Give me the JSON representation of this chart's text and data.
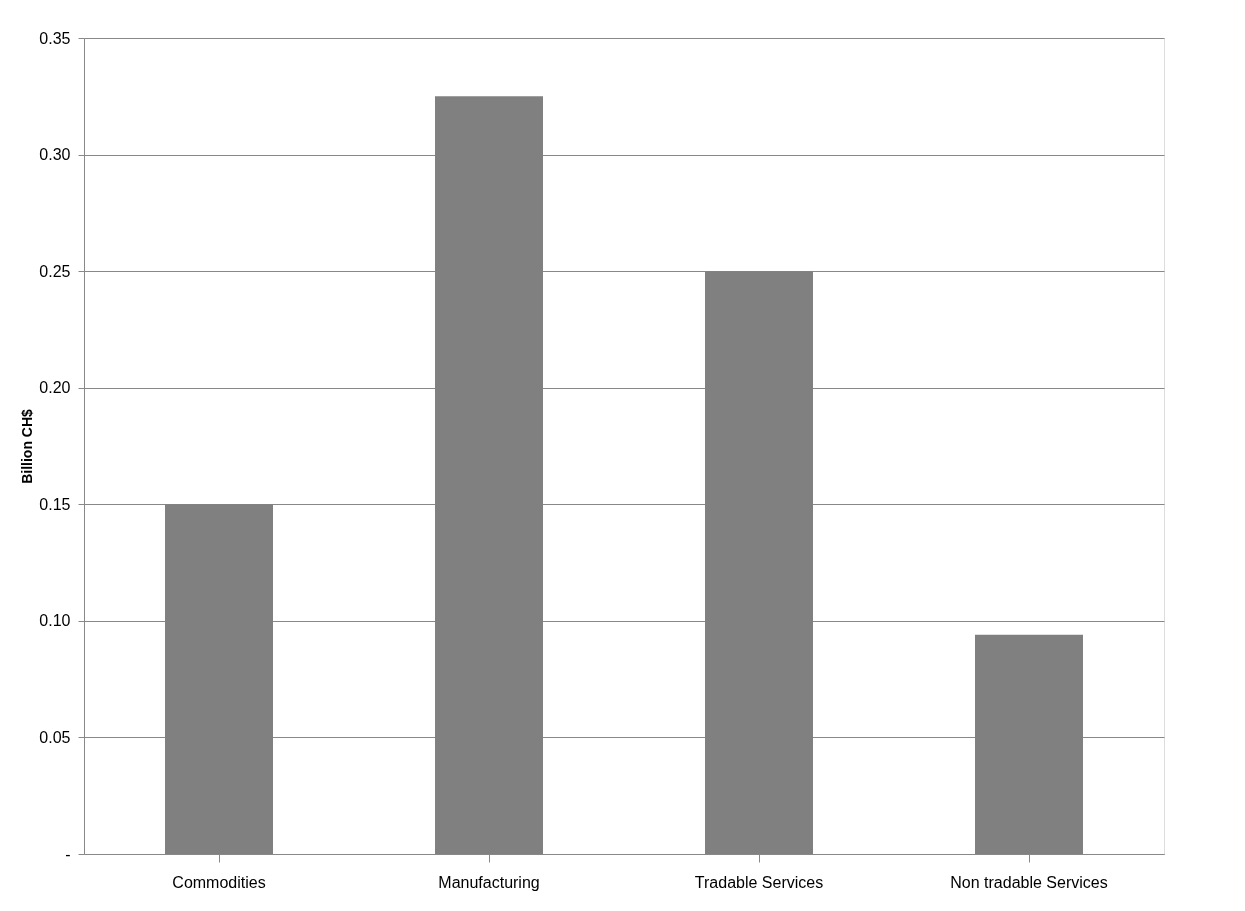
{
  "chart_data": {
    "type": "bar",
    "ylabel": "Billion CH$",
    "categories": [
      "Commodities",
      "Manufacturing",
      "Tradable Services",
      "Non tradable Services"
    ],
    "values": [
      0.15,
      0.325,
      0.25,
      0.094
    ],
    "color": "#808080",
    "ylim": [
      0,
      0.35
    ],
    "yticks": [
      {
        "value": 0,
        "label": "-"
      },
      {
        "value": 0.05,
        "label": "0.05"
      },
      {
        "value": 0.1,
        "label": "0.10"
      },
      {
        "value": 0.15,
        "label": "0.15"
      },
      {
        "value": 0.2,
        "label": "0.20"
      },
      {
        "value": 0.25,
        "label": "0.25"
      },
      {
        "value": 0.3,
        "label": "0.30"
      },
      {
        "value": 0.35,
        "label": "0.35"
      }
    ],
    "grid": "y"
  }
}
